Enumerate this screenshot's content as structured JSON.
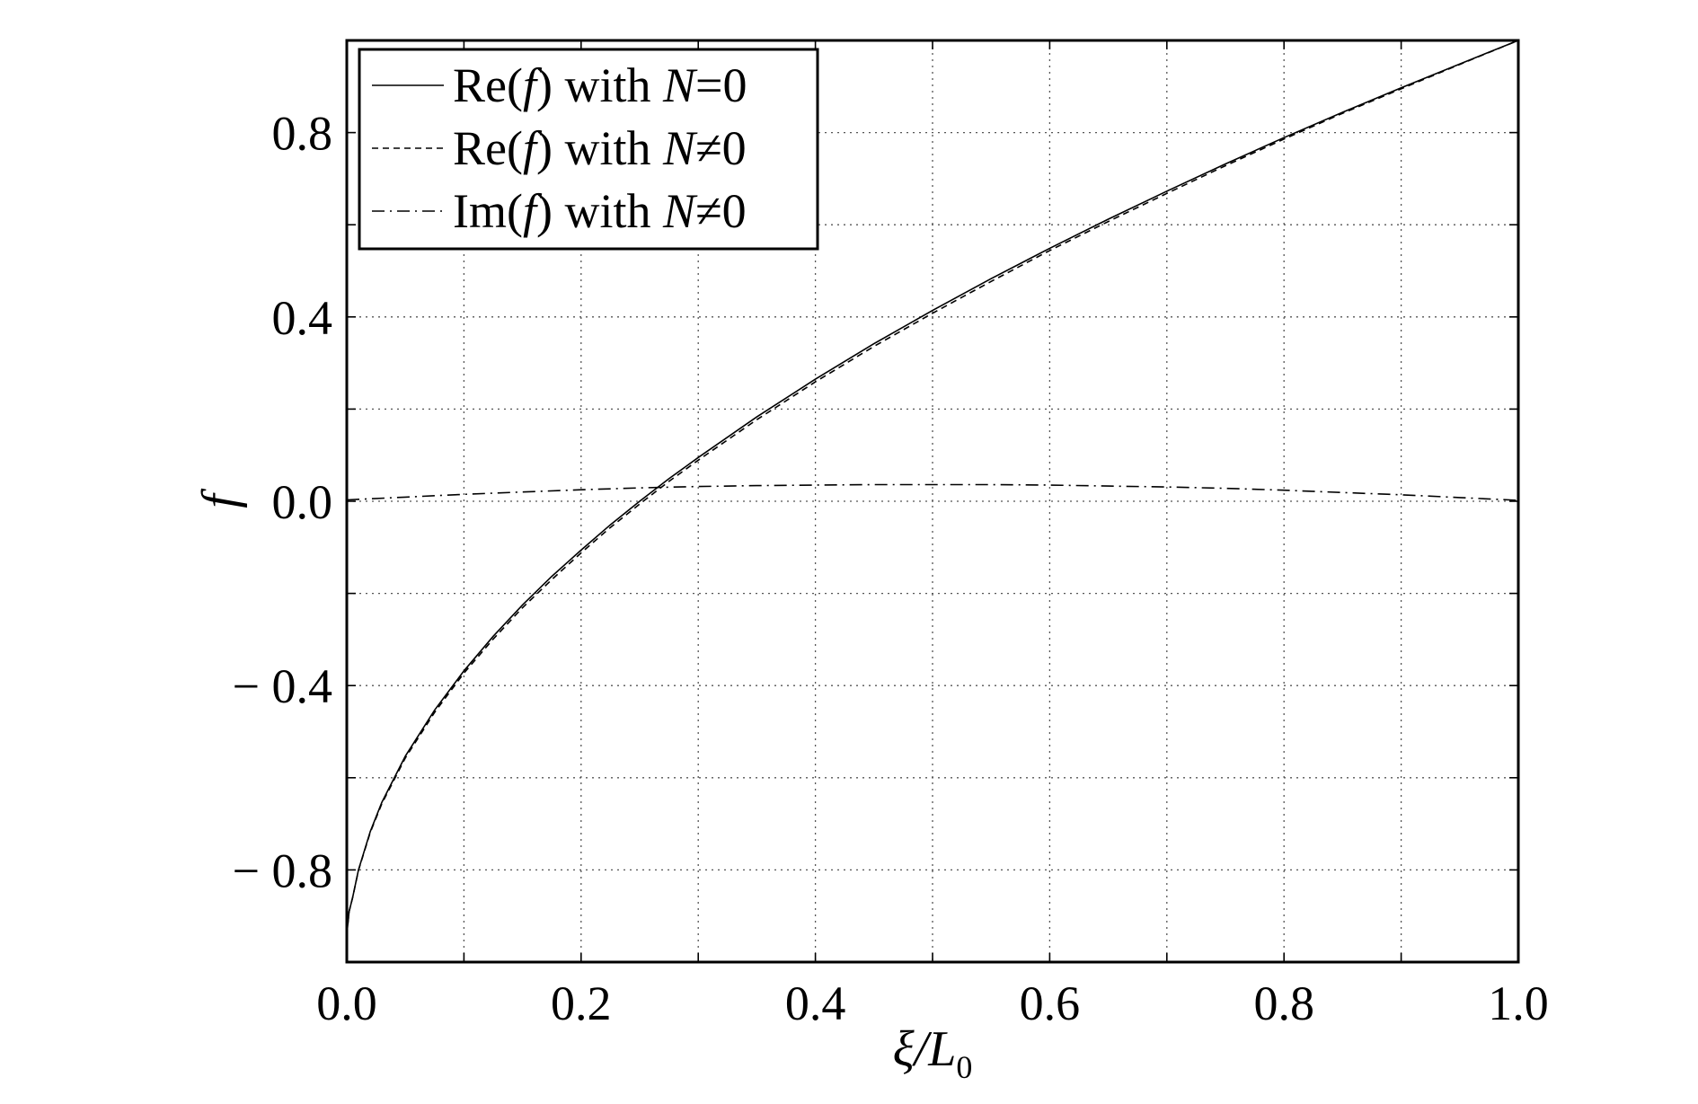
{
  "chart_data": {
    "type": "line",
    "title": "",
    "xlabel": {
      "main": "ξ/L",
      "sub": "0"
    },
    "ylabel": "f",
    "xlim": [
      0.0,
      1.0
    ],
    "ylim": [
      -1.0,
      1.0
    ],
    "x_ticks": [
      0.0,
      0.1,
      0.2,
      0.3,
      0.4,
      0.5,
      0.6,
      0.7,
      0.8,
      0.9,
      1.0
    ],
    "x_tick_labels": [
      {
        "value": 0.0,
        "text": "0.0"
      },
      {
        "value": 0.2,
        "text": "0.2"
      },
      {
        "value": 0.4,
        "text": "0.4"
      },
      {
        "value": 0.6,
        "text": "0.6"
      },
      {
        "value": 0.8,
        "text": "0.8"
      },
      {
        "value": 1.0,
        "text": "1.0"
      }
    ],
    "y_ticks": [
      -0.8,
      -0.6,
      -0.4,
      -0.2,
      0.0,
      0.2,
      0.4,
      0.6,
      0.8
    ],
    "y_tick_labels": [
      {
        "value": 0.8,
        "text": "0.8"
      },
      {
        "value": 0.4,
        "text": "0.4"
      },
      {
        "value": 0.0,
        "text": "0.0"
      },
      {
        "value": -0.4,
        "text": "− 0.4"
      },
      {
        "value": -0.8,
        "text": "− 0.8"
      }
    ],
    "grid": true,
    "legend_position": "top-left",
    "series": [
      {
        "label_prefix": "Re(",
        "label_var": "f",
        "label_mid": ") with ",
        "label_N": "N",
        "label_suffix": "=0",
        "style": "solid",
        "x": [
          0.0,
          0.002,
          0.005,
          0.01,
          0.02,
          0.03,
          0.05,
          0.075,
          0.1,
          0.125,
          0.15,
          0.175,
          0.2,
          0.225,
          0.25,
          0.275,
          0.3,
          0.35,
          0.4,
          0.45,
          0.5,
          0.55,
          0.6,
          0.65,
          0.7,
          0.75,
          0.8,
          0.85,
          0.9,
          0.95,
          1.0
        ],
        "y": [
          -0.94,
          -0.89,
          -0.86,
          -0.8,
          -0.717,
          -0.653,
          -0.553,
          -0.453,
          -0.368,
          -0.293,
          -0.225,
          -0.163,
          -0.106,
          -0.051,
          0.0,
          0.049,
          0.095,
          0.183,
          0.265,
          0.342,
          0.414,
          0.483,
          0.549,
          0.612,
          0.673,
          0.732,
          0.789,
          0.844,
          0.897,
          0.949,
          1.0
        ]
      },
      {
        "label_prefix": "Re(",
        "label_var": "f",
        "label_mid": ") with ",
        "label_N": "N",
        "label_suffix": "≠0",
        "style": "dashed",
        "x": [
          0.0,
          0.002,
          0.005,
          0.01,
          0.02,
          0.03,
          0.05,
          0.075,
          0.1,
          0.125,
          0.15,
          0.175,
          0.2,
          0.225,
          0.25,
          0.275,
          0.3,
          0.35,
          0.4,
          0.45,
          0.5,
          0.55,
          0.6,
          0.65,
          0.7,
          0.75,
          0.8,
          0.85,
          0.9,
          0.95,
          1.0
        ],
        "y": [
          -0.94,
          -0.89,
          -0.86,
          -0.801,
          -0.719,
          -0.656,
          -0.557,
          -0.458,
          -0.373,
          -0.299,
          -0.231,
          -0.17,
          -0.112,
          -0.057,
          -0.006,
          0.043,
          0.089,
          0.177,
          0.259,
          0.336,
          0.408,
          0.477,
          0.544,
          0.607,
          0.668,
          0.728,
          0.786,
          0.842,
          0.895,
          0.948,
          1.0
        ]
      },
      {
        "label_prefix": "Im(",
        "label_var": "f",
        "label_mid": ") with ",
        "label_N": "N",
        "label_suffix": "≠0",
        "style": "dashdot",
        "x": [
          0.0,
          0.05,
          0.1,
          0.15,
          0.2,
          0.25,
          0.3,
          0.35,
          0.4,
          0.45,
          0.5,
          0.55,
          0.6,
          0.65,
          0.7,
          0.75,
          0.8,
          0.85,
          0.9,
          0.95,
          1.0
        ],
        "y": [
          0.003,
          0.009,
          0.015,
          0.02,
          0.025,
          0.029,
          0.032,
          0.034,
          0.035,
          0.036,
          0.036,
          0.036,
          0.035,
          0.033,
          0.031,
          0.028,
          0.024,
          0.019,
          0.014,
          0.008,
          0.002
        ]
      }
    ]
  }
}
